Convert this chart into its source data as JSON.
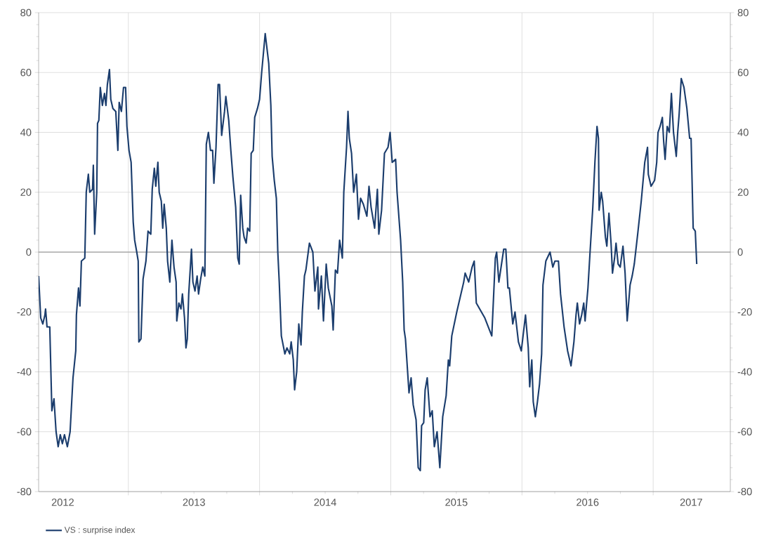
{
  "chart_data": {
    "type": "line",
    "x": [
      2012.316,
      2012.332,
      2012.348,
      2012.364,
      2012.369,
      2012.38,
      2012.401,
      2012.417,
      2012.433,
      2012.449,
      2012.465,
      2012.481,
      2012.497,
      2012.513,
      2012.535,
      2012.556,
      2012.578,
      2012.599,
      2012.604,
      2012.62,
      2012.631,
      2012.642,
      2012.668,
      2012.679,
      2012.695,
      2012.706,
      2012.727,
      2012.733,
      2012.743,
      2012.759,
      2012.765,
      2012.775,
      2012.786,
      2012.802,
      2012.818,
      2012.829,
      2012.84,
      2012.856,
      2012.866,
      2012.882,
      2012.904,
      2012.92,
      2012.93,
      2012.947,
      2012.963,
      2012.979,
      2012.989,
      2013.005,
      2013.021,
      2013.037,
      2013.048,
      2013.064,
      2013.075,
      2013.08,
      2013.096,
      2013.112,
      2013.134,
      2013.15,
      2013.171,
      2013.182,
      2013.198,
      2013.209,
      2013.225,
      2013.235,
      2013.251,
      2013.262,
      2013.273,
      2013.289,
      2013.299,
      2013.316,
      2013.332,
      2013.348,
      2013.364,
      2013.369,
      2013.385,
      2013.401,
      2013.412,
      2013.428,
      2013.439,
      2013.449,
      2013.46,
      2013.481,
      2013.492,
      2013.508,
      2013.524,
      2013.535,
      2013.551,
      2013.567,
      2013.583,
      2013.594,
      2013.61,
      2013.626,
      2013.642,
      2013.652,
      2013.668,
      2013.684,
      2013.695,
      2013.711,
      2013.733,
      2013.743,
      2013.765,
      2013.781,
      2013.797,
      2013.818,
      2013.834,
      2013.845,
      2013.856,
      2013.872,
      2013.882,
      2013.898,
      2013.909,
      2013.925,
      2013.936,
      2013.952,
      2013.963,
      2013.984,
      2014.0,
      2014.016,
      2014.043,
      2014.07,
      2014.086,
      2014.096,
      2014.112,
      2014.128,
      2014.139,
      2014.15,
      2014.166,
      2014.193,
      2014.209,
      2014.23,
      2014.241,
      2014.257,
      2014.267,
      2014.283,
      2014.299,
      2014.316,
      2014.326,
      2014.342,
      2014.353,
      2014.38,
      2014.406,
      2014.422,
      2014.444,
      2014.449,
      2014.471,
      2014.487,
      2014.508,
      2014.524,
      2014.551,
      2014.561,
      2014.578,
      2014.594,
      2014.61,
      2014.631,
      2014.642,
      2014.663,
      2014.674,
      2014.684,
      2014.701,
      2014.717,
      2014.738,
      2014.754,
      2014.77,
      2014.791,
      2014.818,
      2014.834,
      2014.85,
      2014.877,
      2014.898,
      2014.909,
      2014.93,
      2014.952,
      2014.979,
      2014.995,
      2015.011,
      2015.037,
      2015.048,
      2015.075,
      2015.091,
      2015.102,
      2015.112,
      2015.139,
      2015.155,
      2015.171,
      2015.193,
      2015.209,
      2015.225,
      2015.235,
      2015.251,
      2015.262,
      2015.278,
      2015.299,
      2015.316,
      2015.332,
      2015.353,
      2015.374,
      2015.396,
      2015.422,
      2015.439,
      2015.449,
      2015.465,
      2015.503,
      2015.556,
      2015.567,
      2015.594,
      2015.62,
      2015.636,
      2015.652,
      2015.717,
      2015.77,
      2015.797,
      2015.807,
      2015.824,
      2015.861,
      2015.877,
      2015.893,
      2015.904,
      2015.93,
      2015.947,
      2015.973,
      2015.995,
      2016.011,
      2016.027,
      2016.048,
      2016.059,
      2016.075,
      2016.086,
      2016.102,
      2016.118,
      2016.134,
      2016.15,
      2016.16,
      2016.182,
      2016.214,
      2016.235,
      2016.251,
      2016.278,
      2016.294,
      2016.321,
      2016.348,
      2016.374,
      2016.396,
      2016.412,
      2016.422,
      2016.439,
      2016.455,
      2016.471,
      2016.481,
      2016.503,
      2016.519,
      2016.54,
      2016.556,
      2016.572,
      2016.583,
      2016.588,
      2016.604,
      2016.615,
      2016.636,
      2016.647,
      2016.663,
      2016.679,
      2016.69,
      2016.706,
      2016.717,
      2016.733,
      2016.749,
      2016.77,
      2016.786,
      2016.802,
      2016.824,
      2016.84,
      2016.856,
      2016.882,
      2016.909,
      2016.936,
      2016.957,
      2016.963,
      2016.984,
      2017.011,
      2017.027,
      2017.037,
      2017.053,
      2017.07,
      2017.08,
      2017.091,
      2017.107,
      2017.123,
      2017.139,
      2017.155,
      2017.176,
      2017.187,
      2017.198,
      2017.214,
      2017.235,
      2017.257,
      2017.278,
      2017.289,
      2017.305,
      2017.321,
      2017.332
    ],
    "series": [
      {
        "name": "VS : surprise index",
        "color": "#1b3d6d",
        "values": [
          -8,
          -22,
          -24,
          -21,
          -19,
          -25,
          -25,
          -53,
          -49,
          -60,
          -65,
          -61,
          -64,
          -61,
          -65,
          -60,
          -42,
          -33,
          -21,
          -12,
          -18,
          -3,
          -2,
          20,
          26,
          20,
          21,
          29,
          6,
          20,
          43,
          44,
          55,
          49,
          53,
          49,
          56,
          61,
          51,
          48,
          47,
          34,
          50,
          47,
          55,
          55,
          42,
          34,
          30,
          10,
          4,
          0,
          -3,
          -30,
          -29,
          -9,
          -3,
          7,
          6,
          21,
          28,
          22,
          30,
          20,
          17,
          8,
          16,
          8,
          -3,
          -10,
          4,
          -5,
          -10,
          -23,
          -17,
          -19,
          -14,
          -22,
          -32,
          -29,
          -14,
          1,
          -10,
          -13,
          -8,
          -14,
          -9,
          -5,
          -8,
          36,
          40,
          34,
          34,
          23,
          35,
          56,
          56,
          39,
          47,
          52,
          44,
          34,
          25,
          15,
          -2,
          -4,
          19,
          8,
          5,
          3,
          8,
          7,
          33,
          34,
          45,
          48,
          51,
          60,
          73,
          63,
          49,
          32,
          24,
          18,
          0,
          -10,
          -28,
          -34,
          -32,
          -34,
          -30,
          -36,
          -46,
          -40,
          -24,
          -31,
          -20,
          -8,
          -6,
          3,
          0,
          -13,
          -5,
          -19,
          -8,
          -23,
          -4,
          -12,
          -18,
          -26,
          -6,
          -7,
          4,
          -2,
          20,
          35,
          47,
          38,
          33,
          20,
          26,
          11,
          18,
          16,
          12,
          22,
          15,
          8,
          21,
          6,
          14,
          33,
          35,
          40,
          30,
          31,
          20,
          4,
          -10,
          -26,
          -29,
          -47,
          -42,
          -51,
          -56,
          -72,
          -73,
          -58,
          -57,
          -46,
          -42,
          -55,
          -53,
          -65,
          -60,
          -72,
          -55,
          -48,
          -36,
          -38,
          -28,
          -20,
          -10,
          -7,
          -10,
          -5,
          -3,
          -17,
          -22,
          -28,
          -2,
          0,
          -10,
          1,
          1,
          -12,
          -12,
          -24,
          -20,
          -30,
          -33,
          -27,
          -21,
          -32,
          -45,
          -36,
          -50,
          -55,
          -50,
          -44,
          -34,
          -11,
          -3,
          0,
          -5,
          -3,
          -3,
          -14,
          -25,
          -33,
          -38,
          -30,
          -21,
          -17,
          -24,
          -21,
          -17,
          -23,
          -12,
          0,
          15,
          30,
          42,
          38,
          14,
          20,
          17,
          5,
          2,
          13,
          3,
          -7,
          -2,
          3,
          -4,
          -5,
          2,
          -7,
          -23,
          -11,
          -8,
          -4,
          6,
          17,
          30,
          35,
          26,
          22,
          24,
          30,
          40,
          42,
          45,
          37,
          31,
          42,
          40,
          53,
          40,
          32,
          40,
          46,
          58,
          55,
          48,
          38,
          38,
          8,
          7,
          -4
        ]
      }
    ],
    "xlim": [
      2012.316,
      2017.588
    ],
    "xticks": [
      {
        "value": 2013,
        "label": null
      },
      {
        "value": 2014,
        "label": null
      },
      {
        "value": 2015,
        "label": null
      },
      {
        "value": 2016,
        "label": null
      },
      {
        "value": 2017,
        "label": null
      },
      {
        "value": 2012.5,
        "label": "2012"
      },
      {
        "value": 2013.5,
        "label": "2013"
      },
      {
        "value": 2014.5,
        "label": "2014"
      },
      {
        "value": 2015.5,
        "label": "2015"
      },
      {
        "value": 2016.5,
        "label": "2016"
      },
      {
        "value": 2017.29,
        "label": "2017"
      }
    ],
    "ylim": [
      -80,
      80
    ],
    "yticks": [
      -80,
      -60,
      -40,
      -20,
      0,
      20,
      40,
      60,
      80
    ],
    "y2lim": [
      -80,
      80
    ],
    "y2ticks": [
      -80,
      -60,
      -40,
      -20,
      0,
      20,
      40,
      60,
      80
    ],
    "ref_lines": [
      {
        "axis": "y",
        "value": 0,
        "color": "#8c8c8c"
      }
    ],
    "grid": true,
    "legend": "bottom left",
    "marker": "none",
    "line_style": "solid"
  }
}
